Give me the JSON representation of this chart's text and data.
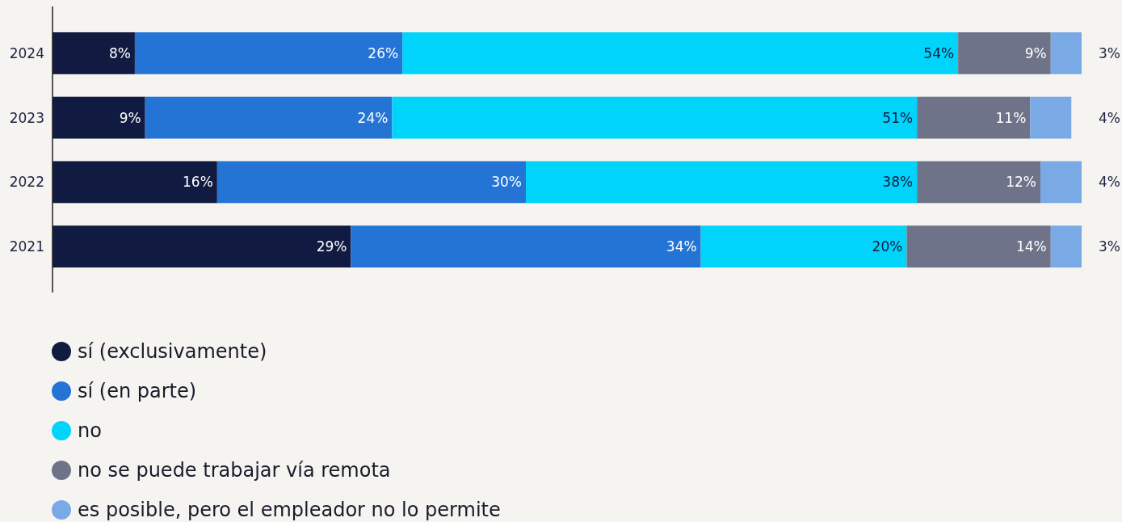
{
  "chart_data": {
    "type": "bar",
    "orientation": "horizontal",
    "stacked": true,
    "categories": [
      "2024",
      "2023",
      "2022",
      "2021"
    ],
    "xlim": [
      0,
      100
    ],
    "tick_labels": "y",
    "legend": "bottom",
    "series": [
      {
        "name": "sí (exclusivamente)",
        "color": "#111a40",
        "values": [
          8,
          9,
          16,
          29
        ],
        "value_labels": [
          "8%",
          "9%",
          "16%",
          "29%"
        ]
      },
      {
        "name": "sí (en parte)",
        "color": "#2474d6",
        "values": [
          26,
          24,
          30,
          34
        ],
        "value_labels": [
          "26%",
          "24%",
          "30%",
          "34%"
        ]
      },
      {
        "name": "no",
        "color": "#00d4fb",
        "values": [
          54,
          51,
          38,
          20
        ],
        "value_labels": [
          "54%",
          "51%",
          "38%",
          "20%"
        ]
      },
      {
        "name": "no se puede trabajar vía remota",
        "color": "#6e7389",
        "values": [
          9,
          11,
          12,
          14
        ],
        "value_labels": [
          "9%",
          "11%",
          "12%",
          "14%"
        ]
      },
      {
        "name": "es posible, pero el empleador no lo permite",
        "color": "#7aaae6",
        "values": [
          3,
          4,
          4,
          3
        ],
        "value_labels": [
          "3%",
          "4%",
          "4%",
          "3%"
        ]
      }
    ]
  }
}
